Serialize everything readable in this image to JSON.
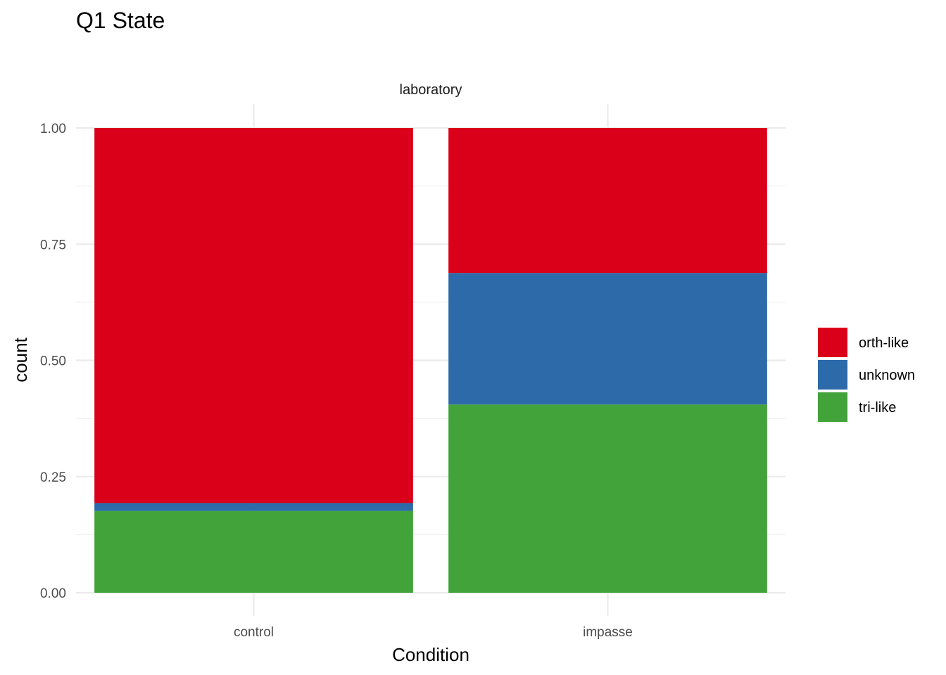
{
  "chart_data": {
    "type": "bar",
    "stacked": true,
    "title": "Q1 State",
    "facet_label": "laboratory",
    "xlabel": "Condition",
    "ylabel": "count",
    "categories": [
      "control",
      "impasse"
    ],
    "ylim": [
      0,
      1
    ],
    "yticks": [
      "0.00",
      "0.25",
      "0.50",
      "0.75",
      "1.00"
    ],
    "grid": true,
    "legend_position": "right",
    "series": [
      {
        "name": "tri-like",
        "color": "#41A33A",
        "values": [
          0.176,
          0.405
        ]
      },
      {
        "name": "unknown",
        "color": "#2C6AA9",
        "values": [
          0.017,
          0.283
        ]
      },
      {
        "name": "orth-like",
        "color": "#DA0019",
        "values": [
          0.807,
          0.312
        ]
      }
    ],
    "legend_order": [
      "orth-like",
      "unknown",
      "tri-like"
    ]
  }
}
